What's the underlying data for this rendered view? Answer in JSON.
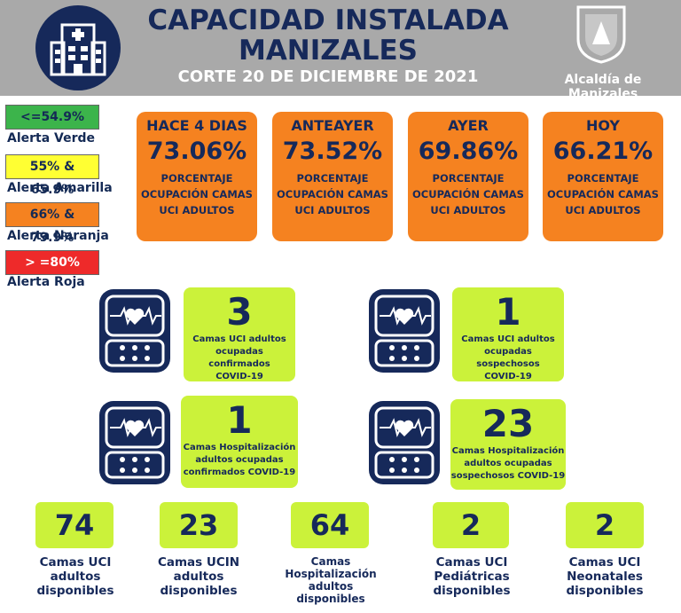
{
  "header": {
    "title_line1": "CAPACIDAD INSTALADA",
    "title_line2": "MANIZALES",
    "subtitle": "CORTE 20 DE DICIEMBRE  DE 2021",
    "org": "Alcaldía de Manizales",
    "icons": [
      "hospital-icon",
      "shield-icon"
    ]
  },
  "legend": [
    {
      "range": "<=54.9%",
      "label": "Alerta Verde",
      "color": "#3cb44b"
    },
    {
      "range": "55% & 65.9%",
      "label": "Alerta Amarilla",
      "color": "#ffff33"
    },
    {
      "range": "66% & 79.9%",
      "label": "Alerta Naranja",
      "color": "#f58220"
    },
    {
      "range": "> =80%",
      "label": "Alerta Roja",
      "color": "#ee2a2a"
    }
  ],
  "occupancy": [
    {
      "day": "HACE 4 DIAS",
      "value": "73.06%",
      "description": "PORCENTAJE OCUPACIÓN CAMAS UCI ADULTOS"
    },
    {
      "day": "ANTEAYER",
      "value": "73.52%",
      "description": "PORCENTAJE OCUPACIÓN CAMAS UCI ADULTOS"
    },
    {
      "day": "AYER",
      "value": "69.86%",
      "description": "PORCENTAJE OCUPACIÓN CAMAS UCI ADULTOS"
    },
    {
      "day": "HOY",
      "value": "66.21%",
      "description": "PORCENTAJE OCUPACIÓN CAMAS UCI ADULTOS"
    }
  ],
  "indicators": [
    {
      "value": "3",
      "line1": "Camas UCI adultos",
      "line2": "ocupadas confirmados",
      "line3": "COVID-19"
    },
    {
      "value": "1",
      "line1": "Camas UCI adultos",
      "line2": "ocupadas sospechosos",
      "line3": "COVID-19"
    },
    {
      "value": "1",
      "line1": "Camas  Hospitalización",
      "line2": "adultos ocupadas",
      "line3": "confirmados COVID-19"
    },
    {
      "value": "23",
      "line1": "Camas Hospitalización",
      "line2": "adultos ocupadas",
      "line3": "sospechosos COVID-19"
    }
  ],
  "availability": [
    {
      "value": "74",
      "line1": "Camas UCI",
      "line2": "adultos",
      "line3": "disponibles"
    },
    {
      "value": "23",
      "line1": "Camas UCIN",
      "line2": "adultos",
      "line3": "disponibles"
    },
    {
      "value": "64",
      "line1": "Camas",
      "line2": "Hospitalización",
      "line3": "adultos",
      "line4": "disponibles"
    },
    {
      "value": "2",
      "line1": "Camas  UCI",
      "line2": "Pediátricas",
      "line3": "disponibles"
    },
    {
      "value": "2",
      "line1": "Camas  UCI",
      "line2": "Neonatales",
      "line3": "disponibles"
    }
  ]
}
